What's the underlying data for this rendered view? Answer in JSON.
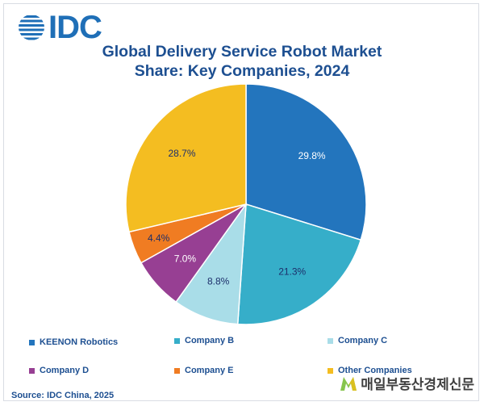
{
  "header": {
    "logo_text": "IDC"
  },
  "chart_data": {
    "type": "pie",
    "title_line1": "Global Delivery Service Robot Market",
    "title_line2": "Share: Key Companies, 2024",
    "slices": [
      {
        "name": "KEENON Robotics",
        "value": 29.8,
        "label": "29.8%",
        "color": "#2375bd"
      },
      {
        "name": "Company B",
        "value": 21.3,
        "label": "21.3%",
        "color": "#36aec9"
      },
      {
        "name": "Company C",
        "value": 8.8,
        "label": "8.8%",
        "color": "#a9dde8"
      },
      {
        "name": "Company D",
        "value": 7.0,
        "label": "7.0%",
        "color": "#973f93"
      },
      {
        "name": "Company E",
        "value": 4.4,
        "label": "4.4%",
        "color": "#f07c22"
      },
      {
        "name": "Other Companies",
        "value": 28.7,
        "label": "28.7%",
        "color": "#f4bd21"
      }
    ],
    "legend_position": "bottom"
  },
  "footer": {
    "source": "Source: IDC China, 2025",
    "watermark": "매일부동산경제신문"
  }
}
